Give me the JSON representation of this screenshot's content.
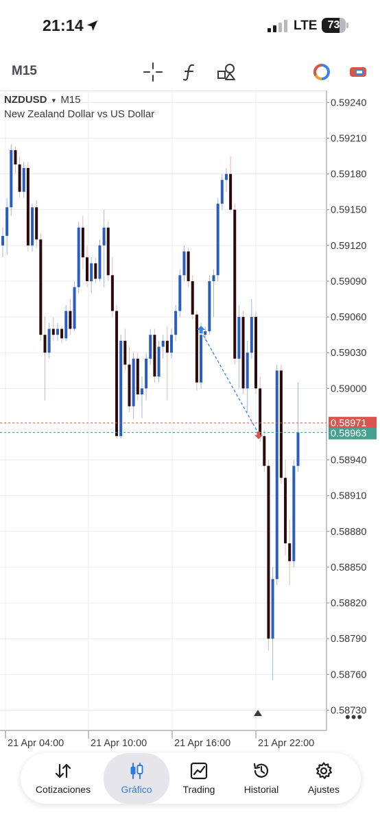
{
  "status": {
    "time": "21:14",
    "carrier": "LTE",
    "battery": "73",
    "battery_level": 0.73,
    "icons": [
      "location-arrow-icon",
      "signal-icon",
      "battery-icon"
    ]
  },
  "toolbar": {
    "timeframe": "M15",
    "icons": [
      "crosshair-icon",
      "indicator-f-icon",
      "objects-icon",
      "account-icon",
      "trade-icon"
    ]
  },
  "chart": {
    "symbol": "NZDUSD",
    "dropdown_glyph": "▾",
    "timeframe": "M15",
    "description": "New Zealand Dollar vs US Dollar",
    "more": "•••",
    "colors": {
      "bull": "#2a5dbe",
      "bear": "#2a0a0e",
      "ask_line": "#d9534f",
      "bid_line": "#3f9a8a",
      "ask_label": "#d9534f",
      "bid_label": "#45a08f",
      "arrow_up": "#3b82e6",
      "arrow_down": "#d9534f",
      "trade_line": "#3b82e6"
    }
  },
  "chart_data": {
    "type": "candlestick",
    "symbol": "NZDUSD",
    "timeframe": "M15",
    "y_ticks": [
      "0.59240",
      "0.59210",
      "0.59180",
      "0.59150",
      "0.59120",
      "0.59090",
      "0.59060",
      "0.59030",
      "0.59000",
      "0.58971",
      "0.58963",
      "0.58940",
      "0.58910",
      "0.58880",
      "0.58850",
      "0.58820",
      "0.58790",
      "0.58760",
      "0.58730"
    ],
    "grid_prices": [
      0.5924,
      0.5921,
      0.5918,
      0.5915,
      0.5912,
      0.5909,
      0.5906,
      0.5903,
      0.59,
      0.5894,
      0.5891,
      0.5888,
      0.5885,
      0.5882,
      0.5879,
      0.5876,
      0.5873
    ],
    "ylim": [
      0.58713,
      0.5925
    ],
    "x_labels": [
      "21 Apr 04:00",
      "21 Apr 10:00",
      "21 Apr 16:00",
      "21 Apr 22:00"
    ],
    "ask_price": "0.58971",
    "bid_price": "0.58963",
    "ask": 0.58971,
    "bid": 0.58963,
    "trade": {
      "entry_index": 48,
      "entry_price": 0.59048,
      "exit_index": 60,
      "exit_price": 0.58962
    },
    "candles": [
      {
        "o": 0.5912,
        "h": 0.59135,
        "l": 0.5911,
        "c": 0.59128
      },
      {
        "o": 0.59128,
        "h": 0.5916,
        "l": 0.59112,
        "c": 0.59152
      },
      {
        "o": 0.59152,
        "h": 0.59205,
        "l": 0.59145,
        "c": 0.592
      },
      {
        "o": 0.592,
        "h": 0.59203,
        "l": 0.5918,
        "c": 0.59188
      },
      {
        "o": 0.59188,
        "h": 0.59195,
        "l": 0.5916,
        "c": 0.59165
      },
      {
        "o": 0.59165,
        "h": 0.5919,
        "l": 0.5916,
        "c": 0.59185
      },
      {
        "o": 0.59185,
        "h": 0.5919,
        "l": 0.59115,
        "c": 0.5912
      },
      {
        "o": 0.5912,
        "h": 0.59155,
        "l": 0.59115,
        "c": 0.59152
      },
      {
        "o": 0.59152,
        "h": 0.59158,
        "l": 0.59118,
        "c": 0.59125
      },
      {
        "o": 0.59125,
        "h": 0.5913,
        "l": 0.5904,
        "c": 0.59045
      },
      {
        "o": 0.59045,
        "h": 0.5906,
        "l": 0.5899,
        "c": 0.5903
      },
      {
        "o": 0.5903,
        "h": 0.59055,
        "l": 0.59025,
        "c": 0.5905
      },
      {
        "o": 0.5905,
        "h": 0.5906,
        "l": 0.5904,
        "c": 0.59045
      },
      {
        "o": 0.59045,
        "h": 0.59055,
        "l": 0.5904,
        "c": 0.5905
      },
      {
        "o": 0.5905,
        "h": 0.59052,
        "l": 0.59038,
        "c": 0.59042
      },
      {
        "o": 0.59042,
        "h": 0.5907,
        "l": 0.5904,
        "c": 0.59065
      },
      {
        "o": 0.59065,
        "h": 0.59075,
        "l": 0.59045,
        "c": 0.5905
      },
      {
        "o": 0.5905,
        "h": 0.5909,
        "l": 0.59048,
        "c": 0.59085
      },
      {
        "o": 0.59085,
        "h": 0.5914,
        "l": 0.5908,
        "c": 0.59135
      },
      {
        "o": 0.59135,
        "h": 0.59145,
        "l": 0.591,
        "c": 0.5911
      },
      {
        "o": 0.5911,
        "h": 0.5912,
        "l": 0.59085,
        "c": 0.5909
      },
      {
        "o": 0.5909,
        "h": 0.5911,
        "l": 0.5908,
        "c": 0.59105
      },
      {
        "o": 0.59105,
        "h": 0.5911,
        "l": 0.59088,
        "c": 0.59092
      },
      {
        "o": 0.59092,
        "h": 0.59125,
        "l": 0.5909,
        "c": 0.5912
      },
      {
        "o": 0.5912,
        "h": 0.5915,
        "l": 0.59085,
        "c": 0.59135
      },
      {
        "o": 0.59135,
        "h": 0.5914,
        "l": 0.5909,
        "c": 0.59095
      },
      {
        "o": 0.59095,
        "h": 0.5911,
        "l": 0.5906,
        "c": 0.59065
      },
      {
        "o": 0.59065,
        "h": 0.5907,
        "l": 0.58958,
        "c": 0.5896
      },
      {
        "o": 0.5896,
        "h": 0.59045,
        "l": 0.58958,
        "c": 0.5904
      },
      {
        "o": 0.5904,
        "h": 0.5905,
        "l": 0.59015,
        "c": 0.5902
      },
      {
        "o": 0.5902,
        "h": 0.59035,
        "l": 0.5898,
        "c": 0.58985
      },
      {
        "o": 0.58985,
        "h": 0.5903,
        "l": 0.58975,
        "c": 0.59025
      },
      {
        "o": 0.59025,
        "h": 0.5903,
        "l": 0.5899,
        "c": 0.58995
      },
      {
        "o": 0.58995,
        "h": 0.5901,
        "l": 0.58975,
        "c": 0.59
      },
      {
        "o": 0.59,
        "h": 0.5903,
        "l": 0.5899,
        "c": 0.59025
      },
      {
        "o": 0.59025,
        "h": 0.5905,
        "l": 0.5902,
        "c": 0.59045
      },
      {
        "o": 0.59045,
        "h": 0.5905,
        "l": 0.59005,
        "c": 0.5901
      },
      {
        "o": 0.5901,
        "h": 0.5904,
        "l": 0.59005,
        "c": 0.59035
      },
      {
        "o": 0.59035,
        "h": 0.59045,
        "l": 0.59025,
        "c": 0.5904
      },
      {
        "o": 0.5904,
        "h": 0.59052,
        "l": 0.5899,
        "c": 0.5903
      },
      {
        "o": 0.5903,
        "h": 0.5905,
        "l": 0.59025,
        "c": 0.59045
      },
      {
        "o": 0.59045,
        "h": 0.5907,
        "l": 0.5904,
        "c": 0.59065
      },
      {
        "o": 0.59065,
        "h": 0.591,
        "l": 0.5906,
        "c": 0.59095
      },
      {
        "o": 0.59095,
        "h": 0.5912,
        "l": 0.5909,
        "c": 0.59115
      },
      {
        "o": 0.59115,
        "h": 0.59118,
        "l": 0.59085,
        "c": 0.5909
      },
      {
        "o": 0.5909,
        "h": 0.59095,
        "l": 0.59058,
        "c": 0.59062
      },
      {
        "o": 0.59062,
        "h": 0.59065,
        "l": 0.58998,
        "c": 0.59005
      },
      {
        "o": 0.59005,
        "h": 0.59055,
        "l": 0.59,
        "c": 0.59045
      },
      {
        "o": 0.59045,
        "h": 0.59052,
        "l": 0.5904,
        "c": 0.59048
      },
      {
        "o": 0.59048,
        "h": 0.59095,
        "l": 0.59045,
        "c": 0.5909
      },
      {
        "o": 0.5909,
        "h": 0.591,
        "l": 0.5906,
        "c": 0.59095
      },
      {
        "o": 0.59095,
        "h": 0.5916,
        "l": 0.5909,
        "c": 0.59155
      },
      {
        "o": 0.59155,
        "h": 0.5918,
        "l": 0.5915,
        "c": 0.59175
      },
      {
        "o": 0.59175,
        "h": 0.59185,
        "l": 0.59165,
        "c": 0.5918
      },
      {
        "o": 0.5918,
        "h": 0.59195,
        "l": 0.59148,
        "c": 0.5915
      },
      {
        "o": 0.5915,
        "h": 0.59155,
        "l": 0.5902,
        "c": 0.59025
      },
      {
        "o": 0.59025,
        "h": 0.5907,
        "l": 0.59,
        "c": 0.5906
      },
      {
        "o": 0.5906,
        "h": 0.59065,
        "l": 0.58995,
        "c": 0.59
      },
      {
        "o": 0.59,
        "h": 0.5904,
        "l": 0.5898,
        "c": 0.5903
      },
      {
        "o": 0.5903,
        "h": 0.59075,
        "l": 0.59025,
        "c": 0.5906
      },
      {
        "o": 0.5906,
        "h": 0.59065,
        "l": 0.58995,
        "c": 0.59
      },
      {
        "o": 0.59,
        "h": 0.5901,
        "l": 0.58955,
        "c": 0.5896
      },
      {
        "o": 0.5896,
        "h": 0.58965,
        "l": 0.5893,
        "c": 0.58935
      },
      {
        "o": 0.58935,
        "h": 0.5894,
        "l": 0.5878,
        "c": 0.5879
      },
      {
        "o": 0.5879,
        "h": 0.5885,
        "l": 0.58755,
        "c": 0.5884
      },
      {
        "o": 0.5884,
        "h": 0.5902,
        "l": 0.58835,
        "c": 0.59015
      },
      {
        "o": 0.59015,
        "h": 0.5902,
        "l": 0.5892,
        "c": 0.58925
      },
      {
        "o": 0.58925,
        "h": 0.5894,
        "l": 0.5886,
        "c": 0.5887
      },
      {
        "o": 0.5887,
        "h": 0.5889,
        "l": 0.58835,
        "c": 0.58855
      },
      {
        "o": 0.58855,
        "h": 0.5894,
        "l": 0.5885,
        "c": 0.58935
      },
      {
        "o": 0.58935,
        "h": 0.59005,
        "l": 0.5893,
        "c": 0.58963
      }
    ]
  },
  "nav": {
    "items": [
      {
        "label": "Cotizaciones",
        "icon": "quotes-arrows-icon",
        "active": false
      },
      {
        "label": "Gráfico",
        "icon": "candles-icon",
        "active": true
      },
      {
        "label": "Trading",
        "icon": "trading-chart-icon",
        "active": false
      },
      {
        "label": "Historial",
        "icon": "history-clock-icon",
        "active": false
      },
      {
        "label": "Ajustes",
        "icon": "settings-gear-icon",
        "active": false
      }
    ]
  }
}
